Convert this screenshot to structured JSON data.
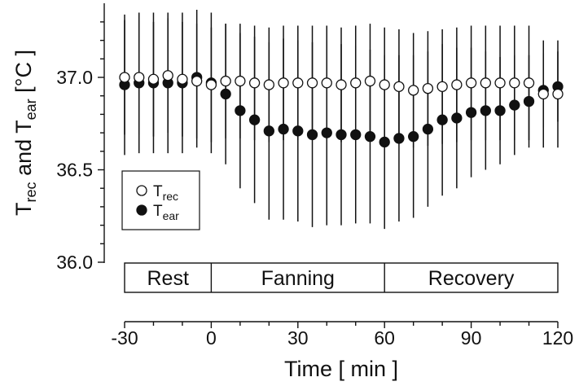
{
  "chart_data": {
    "type": "scatter",
    "title": "",
    "xlabel": "Time [ min ]",
    "ylabel": {
      "base": "T",
      "sub1": "rec",
      "mid": " and T",
      "sub2": "ear",
      "unit": " [°C ]"
    },
    "xlim": [
      -30,
      120
    ],
    "ylim": [
      36.0,
      37.35
    ],
    "xticks": [
      "-30",
      "0",
      "30",
      "60",
      "90",
      "120"
    ],
    "xtick_values": [
      -30,
      0,
      30,
      60,
      90,
      120
    ],
    "yticks": [
      "36.0",
      "36.5",
      "37.0"
    ],
    "ytick_values": [
      36.0,
      36.5,
      37.0
    ],
    "phases": [
      {
        "label": "Rest",
        "start": -30,
        "end": 0
      },
      {
        "label": "Fanning",
        "start": 0,
        "end": 60
      },
      {
        "label": "Recovery",
        "start": 60,
        "end": 120
      }
    ],
    "legend": {
      "placement": "left",
      "entries": [
        {
          "base": "T",
          "sub": "rec",
          "marker": "open-circle"
        },
        {
          "base": "T",
          "sub": "ear",
          "marker": "filled-circle"
        }
      ]
    },
    "x": [
      -30,
      -27,
      -24,
      -21,
      -18,
      -15,
      -12,
      -9,
      -6,
      -3,
      0,
      3,
      6,
      9,
      12,
      15,
      18,
      21,
      24,
      27,
      30,
      33,
      36,
      39,
      42,
      45,
      48,
      51,
      54,
      57,
      60,
      63,
      66,
      69,
      72,
      75,
      78,
      81,
      84,
      87,
      90,
      93,
      96,
      99,
      102,
      105,
      108,
      111,
      114,
      117,
      120
    ],
    "series": [
      {
        "name": "T_rec",
        "marker": "open-circle",
        "x": [
          -30,
          -25,
          -20,
          -15,
          -10,
          -5,
          0,
          5,
          10,
          15,
          20,
          25,
          30,
          35,
          40,
          45,
          50,
          55,
          60,
          65,
          70,
          75,
          80,
          85,
          90,
          95,
          100,
          105,
          110,
          115,
          120
        ],
        "values": [
          37.0,
          37.0,
          36.99,
          37.01,
          36.99,
          36.98,
          36.96,
          36.98,
          36.98,
          36.97,
          36.96,
          36.97,
          36.97,
          36.97,
          36.97,
          36.96,
          36.97,
          36.98,
          36.96,
          36.95,
          36.93,
          36.94,
          36.95,
          36.96,
          36.97,
          36.97,
          36.97,
          36.97,
          36.97,
          36.91,
          36.91
        ],
        "err": [
          0.31,
          0.31,
          0.31,
          0.31,
          0.31,
          0.31,
          0.31,
          0.31,
          0.31,
          0.31,
          0.31,
          0.31,
          0.31,
          0.31,
          0.31,
          0.31,
          0.31,
          0.31,
          0.31,
          0.31,
          0.31,
          0.31,
          0.31,
          0.31,
          0.31,
          0.31,
          0.31,
          0.31,
          0.31,
          0.29,
          0.29
        ]
      },
      {
        "name": "T_ear",
        "marker": "filled-circle",
        "x": [
          -30,
          -25,
          -20,
          -15,
          -10,
          -5,
          0,
          5,
          10,
          15,
          20,
          25,
          30,
          35,
          40,
          45,
          50,
          55,
          60,
          65,
          70,
          75,
          80,
          85,
          90,
          95,
          100,
          105,
          110,
          115,
          120
        ],
        "values": [
          36.96,
          36.97,
          36.97,
          36.97,
          36.97,
          37.0,
          36.97,
          36.91,
          36.82,
          36.77,
          36.71,
          36.72,
          36.71,
          36.69,
          36.7,
          36.69,
          36.69,
          36.68,
          36.65,
          36.67,
          36.68,
          36.72,
          36.77,
          36.78,
          36.81,
          36.82,
          36.82,
          36.85,
          36.87,
          36.93,
          36.95
        ],
        "err": [
          0.38,
          0.38,
          0.38,
          0.38,
          0.38,
          0.38,
          0.38,
          0.38,
          0.42,
          0.45,
          0.48,
          0.49,
          0.49,
          0.5,
          0.5,
          0.49,
          0.48,
          0.47,
          0.47,
          0.45,
          0.44,
          0.42,
          0.41,
          0.38,
          0.35,
          0.32,
          0.29,
          0.27,
          0.25,
          0.2,
          0.19
        ]
      }
    ]
  }
}
